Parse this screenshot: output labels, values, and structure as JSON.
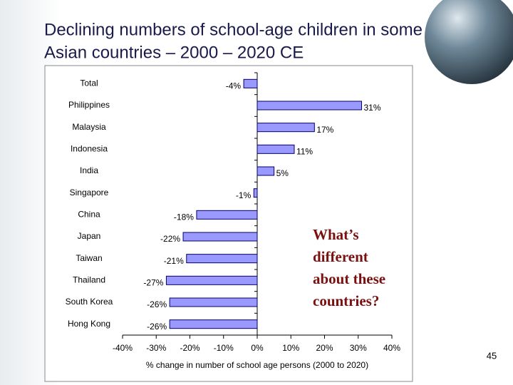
{
  "slide_number": "45",
  "chart_data": {
    "type": "hbar",
    "title": [
      "Declining numbers of school-age children in some",
      "Asian countries – 2000 – 2020 CE"
    ],
    "categories": [
      "Total",
      "Philippines",
      "Malaysia",
      "Indonesia",
      "India",
      "Singapore",
      "China",
      "Japan",
      "Taiwan",
      "Thailand",
      "South Korea",
      "Hong Kong"
    ],
    "values": [
      -4,
      31,
      17,
      11,
      5,
      -1,
      -18,
      -22,
      -21,
      -27,
      -26,
      -26
    ],
    "value_labels": [
      "-4%",
      "31%",
      "17%",
      "11%",
      "5%",
      "-1%",
      "-18%",
      "-22%",
      "-21%",
      "-27%",
      "-26%",
      "-26%"
    ],
    "color": "#9999ff",
    "xlim": [
      -40,
      40
    ],
    "xticks": [
      {
        "value": -40,
        "label": "-40%"
      },
      {
        "value": -30,
        "label": "-30%"
      },
      {
        "value": -20,
        "label": "-20%"
      },
      {
        "value": -10,
        "label": "-10%"
      },
      {
        "value": 0,
        "label": "0%"
      },
      {
        "value": 10,
        "label": "10%"
      },
      {
        "value": 20,
        "label": "20%"
      },
      {
        "value": 30,
        "label": "30%"
      },
      {
        "value": 40,
        "label": "40%"
      }
    ],
    "x_label": "% change in number of school age persons (2000 to 2020)",
    "annotation": [
      "What’s",
      "different",
      "about these",
      "countries?"
    ]
  }
}
